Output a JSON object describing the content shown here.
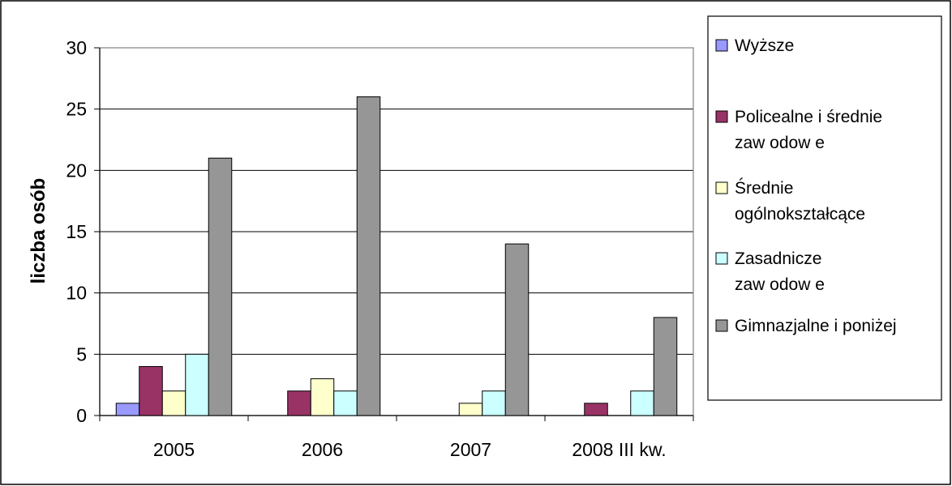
{
  "chart_data": {
    "type": "bar",
    "categories": [
      "2005",
      "2006",
      "2007",
      "2008 III kw."
    ],
    "series": [
      {
        "name": "Wyższe",
        "values": [
          1,
          0,
          0,
          0
        ],
        "color": "#9999ff"
      },
      {
        "name": "Policealne i średnie zaw odow e",
        "values": [
          4,
          2,
          0,
          1
        ],
        "color": "#993366"
      },
      {
        "name": "Średnie ogólnokształcące",
        "values": [
          2,
          3,
          1,
          0
        ],
        "color": "#ffffcc"
      },
      {
        "name": "Zasadnicze zaw odow e",
        "values": [
          5,
          2,
          2,
          2
        ],
        "color": "#ccffff"
      },
      {
        "name": "Gimnazjalne i poniżej",
        "values": [
          21,
          26,
          14,
          8
        ],
        "color": "#969696"
      }
    ],
    "ylabel": "liczba osób",
    "ylim": [
      0,
      30
    ],
    "yticks": [
      0,
      5,
      10,
      15,
      20,
      25,
      30
    ],
    "grid": true,
    "legend": "right"
  }
}
